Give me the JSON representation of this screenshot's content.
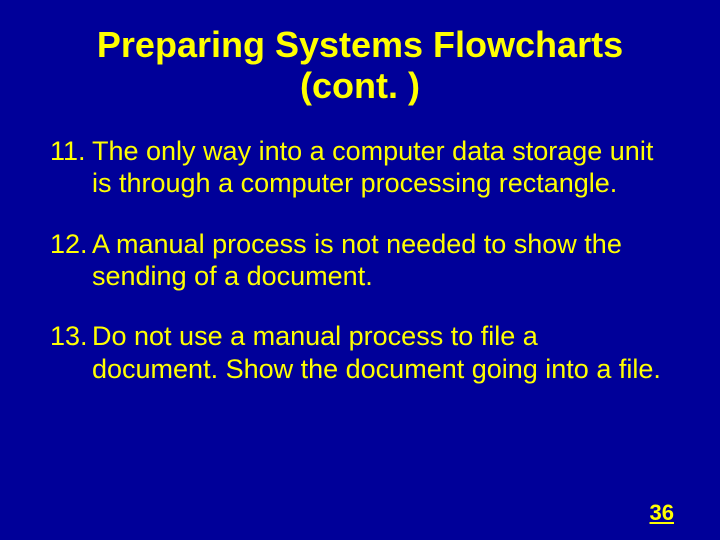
{
  "slide": {
    "background_color": "#000099",
    "text_color": "#ffff00",
    "title": "Preparing Systems Flowcharts (cont. )",
    "title_fontsize": 36,
    "body_fontsize": 27,
    "items": [
      {
        "number": "11.",
        "text": "The only way into a computer data storage unit is through a computer processing rectangle."
      },
      {
        "number": "12.",
        "text": "A manual process is not needed to show the sending of a document."
      },
      {
        "number": "13.",
        "text": "Do not use a manual process to file a document. Show the document going into a file."
      }
    ],
    "page_number": "36"
  }
}
